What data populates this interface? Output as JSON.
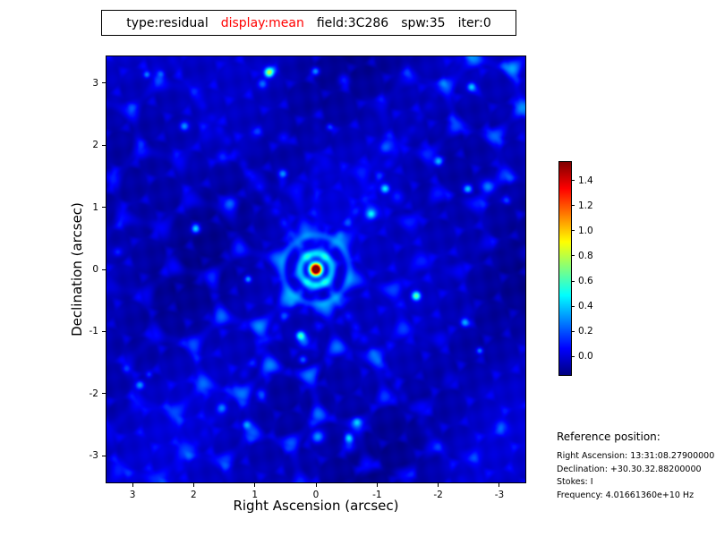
{
  "title_bar": {
    "segments": [
      {
        "text": "type:residual",
        "color": "#000000"
      },
      {
        "text": "display:mean",
        "color": "#ff0000"
      },
      {
        "text": "field:3C286",
        "color": "#000000"
      },
      {
        "text": "spw:35",
        "color": "#000000"
      },
      {
        "text": "iter:0",
        "color": "#000000"
      }
    ]
  },
  "chart_data": {
    "type": "heatmap",
    "title": "",
    "xlabel": "Right Ascension (arcsec)",
    "ylabel": "Declination (arcsec)",
    "x_ticks": {
      "values": [
        3,
        2,
        1,
        0,
        -1,
        -2,
        -3
      ],
      "labels": [
        "3",
        "2",
        "1",
        "0",
        "-1",
        "-2",
        "-3"
      ]
    },
    "y_ticks": {
      "values": [
        3,
        2,
        1,
        0,
        -1,
        -2,
        -3
      ],
      "labels": [
        "3",
        "2",
        "1",
        "0",
        "-1",
        "-2",
        "-3"
      ]
    },
    "x_axis_range_left_to_right": [
      3.44,
      -3.44
    ],
    "y_axis_range_bottom_to_top": [
      -3.44,
      3.44
    ],
    "colormap": "jet",
    "value_range": [
      -0.155,
      1.555
    ],
    "colorbar_ticks": {
      "values": [
        1.4,
        1.2,
        1.0,
        0.8,
        0.6,
        0.4,
        0.2,
        0.0
      ],
      "labels": [
        "1.4",
        "1.2",
        "1.0",
        "0.8",
        "0.6",
        "0.4",
        "0.2",
        "0.0"
      ]
    },
    "legend_position": "colorbar-right",
    "grid": false,
    "peak_source": {
      "x": 0.0,
      "y": 0.0,
      "amplitude": 1.55
    },
    "spot_sigma_arcsec": 0.05,
    "bright_spots": [
      {
        "x": 0.78,
        "y": 3.18,
        "a": 0.55
      },
      {
        "x": -2.55,
        "y": 2.95,
        "a": 0.5
      },
      {
        "x": -1.13,
        "y": 1.31,
        "a": 0.5
      },
      {
        "x": 1.98,
        "y": 0.66,
        "a": 0.5
      },
      {
        "x": -1.64,
        "y": -0.42,
        "a": 0.7
      },
      {
        "x": 0.26,
        "y": -1.06,
        "a": 0.6
      },
      {
        "x": -2.44,
        "y": -0.85,
        "a": 0.45
      },
      {
        "x": 2.9,
        "y": -1.86,
        "a": 0.4
      },
      {
        "x": -0.54,
        "y": -2.72,
        "a": 0.5
      },
      {
        "x": 2.17,
        "y": 2.32,
        "a": 0.35
      },
      {
        "x": -2.0,
        "y": 1.75,
        "a": 0.4
      },
      {
        "x": 1.15,
        "y": -2.5,
        "a": 0.35
      },
      {
        "x": 0.55,
        "y": 1.55,
        "a": 0.4
      },
      {
        "x": -0.9,
        "y": 0.9,
        "a": 0.35
      }
    ],
    "description": "Interferometric residual image of field 3C286: dark blue background near 0 with cyan web-like sidelobe filaments, dashed diagonal sidelobe spokes, scattered compact cyan/green spots up to ~0.7, and a bright red point source of ~1.5 at the field center (0,0). Jet colormap, colorbar from about -0.15 to 1.55."
  },
  "reference_block": {
    "heading": "Reference position:",
    "lines": [
      "Right Ascension: 13:31:08.27900000",
      "Declination: +30.30.32.88200000",
      "Stokes: I",
      "Frequency: 4.01661360e+10 Hz"
    ]
  }
}
